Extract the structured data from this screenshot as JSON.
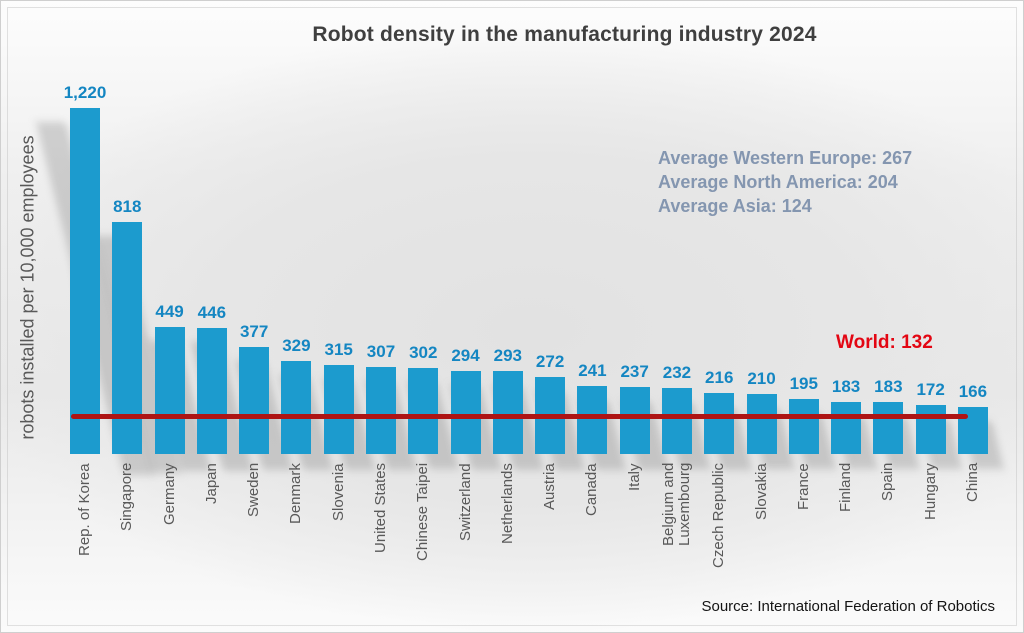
{
  "title": "Robot density in the manufacturing industry 2024",
  "chart_data": {
    "type": "bar",
    "title": "Robot density in the manufacturing industry 2024",
    "xlabel": "",
    "ylabel": "robots installed per 10,000 employees",
    "ylim": [
      0,
      1220
    ],
    "grid": false,
    "categories": [
      "Rep. of Korea",
      "Singapore",
      "Germany",
      "Japan",
      "Sweden",
      "Denmark",
      "Slovenia",
      "United States",
      "Chinese Taipei",
      "Switzerland",
      "Netherlands",
      "Austria",
      "Canada",
      "Italy",
      "Belgium and\nLuxembourg",
      "Czech Republic",
      "Slovakia",
      "France",
      "Finland",
      "Spain",
      "Hungary",
      "China"
    ],
    "values": [
      1220,
      818,
      449,
      446,
      377,
      329,
      315,
      307,
      302,
      294,
      293,
      272,
      241,
      237,
      232,
      216,
      210,
      195,
      183,
      183,
      172,
      166
    ],
    "value_labels": [
      "1,220",
      "818",
      "449",
      "446",
      "377",
      "329",
      "315",
      "307",
      "302",
      "294",
      "293",
      "272",
      "241",
      "237",
      "232",
      "216",
      "210",
      "195",
      "183",
      "183",
      "172",
      "166"
    ],
    "annotations": [
      "Average Western Europe: 267",
      "Average North America: 204",
      "Average Asia: 124"
    ],
    "world_line": {
      "label": "World: 132",
      "value": 132
    },
    "source": "Source: International Federation of Robotics",
    "colors": {
      "bar": "#1c9bce",
      "value_label": "#1486c2",
      "world_line": "#ae1414",
      "world_label": "#e30613",
      "annotation": "#8496b0",
      "title": "#3f3f3f",
      "axis_text": "#595959"
    }
  }
}
